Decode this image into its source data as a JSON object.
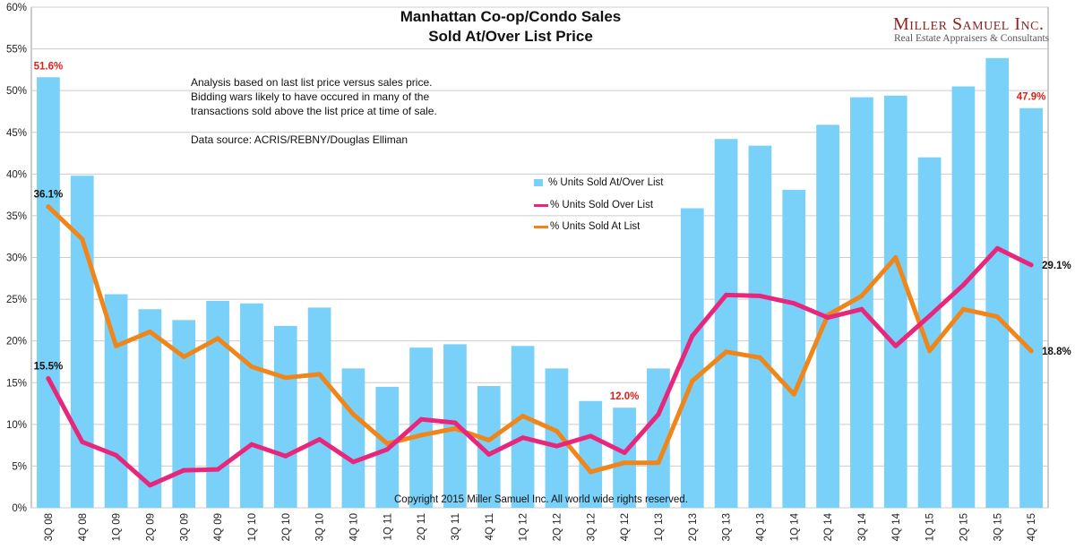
{
  "header": {
    "title_line1": "Manhattan Co-op/Condo Sales",
    "title_line2": "Sold At/Over List Price",
    "brand_name": "Miller Samuel Inc.",
    "brand_tagline": "Real Estate Appraisers & Consultants"
  },
  "notes": {
    "line1": "Analysis based on last list price versus sales price.",
    "line2": "Bidding wars likely to have occured in many of the",
    "line3": "transactions sold above the list price at time of sale.",
    "source": "Data source: ACRIS/REBNY/Douglas Elliman"
  },
  "copyright": "Copyright 2015 Miller Samuel Inc.  All world wide rights reserved.",
  "colors": {
    "bars": "#79d0f8",
    "over": "#e8267c",
    "at": "#f08519",
    "grid": "#cccccc",
    "red_label": "#e0201a"
  },
  "chart_data": {
    "type": "bar",
    "title": "Manhattan Co-op/Condo Sales Sold At/Over List Price",
    "xlabel": "",
    "ylabel": "",
    "ylim": [
      0,
      60
    ],
    "yticks": [
      "0%",
      "5%",
      "10%",
      "15%",
      "20%",
      "25%",
      "30%",
      "35%",
      "40%",
      "45%",
      "50%",
      "55%",
      "60%"
    ],
    "categories": [
      "3Q 08",
      "4Q 08",
      "1Q 09",
      "2Q 09",
      "3Q 09",
      "4Q 09",
      "1Q 10",
      "2Q 10",
      "3Q 10",
      "4Q 10",
      "1Q 11",
      "2Q 11",
      "3Q 11",
      "4Q 11",
      "1Q 12",
      "2Q 12",
      "3Q 12",
      "4Q 12",
      "1Q 13",
      "2Q 13",
      "3Q 13",
      "4Q 13",
      "1Q 14",
      "2Q 14",
      "3Q 14",
      "4Q 14",
      "1Q 15",
      "2Q 15",
      "3Q 15",
      "4Q 15"
    ],
    "series": [
      {
        "name": "% Units Sold At/Over List",
        "kind": "bar",
        "values": [
          51.6,
          39.8,
          25.6,
          23.8,
          22.5,
          24.8,
          24.5,
          21.8,
          24.0,
          16.7,
          14.5,
          19.2,
          19.6,
          14.6,
          19.4,
          16.7,
          12.8,
          12.0,
          16.7,
          35.9,
          44.2,
          43.4,
          38.1,
          45.9,
          49.2,
          49.4,
          42.0,
          50.5,
          53.9,
          47.9
        ]
      },
      {
        "name": "% Units Sold Over List",
        "kind": "line",
        "values": [
          15.5,
          7.9,
          6.3,
          2.7,
          4.5,
          4.6,
          7.6,
          6.2,
          8.2,
          5.5,
          7.0,
          10.6,
          10.2,
          6.4,
          8.4,
          7.4,
          8.6,
          6.6,
          11.2,
          20.6,
          25.5,
          25.4,
          24.5,
          22.8,
          23.8,
          19.4,
          23.0,
          26.7,
          31.1,
          29.1
        ]
      },
      {
        "name": "% Units Sold At List",
        "kind": "line",
        "values": [
          36.1,
          32.2,
          19.4,
          21.1,
          18.1,
          20.3,
          16.9,
          15.6,
          16.0,
          11.2,
          7.7,
          8.7,
          9.5,
          8.1,
          11.0,
          9.2,
          4.3,
          5.4,
          5.4,
          15.2,
          18.7,
          18.0,
          13.6,
          23.1,
          25.4,
          30.0,
          18.8,
          23.8,
          22.9,
          18.8
        ]
      }
    ],
    "annotations": [
      {
        "series": 0,
        "index": 0,
        "text": "51.6%",
        "color": "red"
      },
      {
        "series": 0,
        "index": 17,
        "text": "12.0%",
        "color": "red"
      },
      {
        "series": 0,
        "index": 29,
        "text": "47.9%",
        "color": "red"
      },
      {
        "series": 2,
        "index": 0,
        "text": "36.1%",
        "color": "black"
      },
      {
        "series": 1,
        "index": 0,
        "text": "15.5%",
        "color": "black"
      },
      {
        "series": 1,
        "index": 29,
        "text": "29.1%",
        "color": "black"
      },
      {
        "series": 2,
        "index": 29,
        "text": "18.8%",
        "color": "black"
      }
    ],
    "legend": "center-right"
  }
}
